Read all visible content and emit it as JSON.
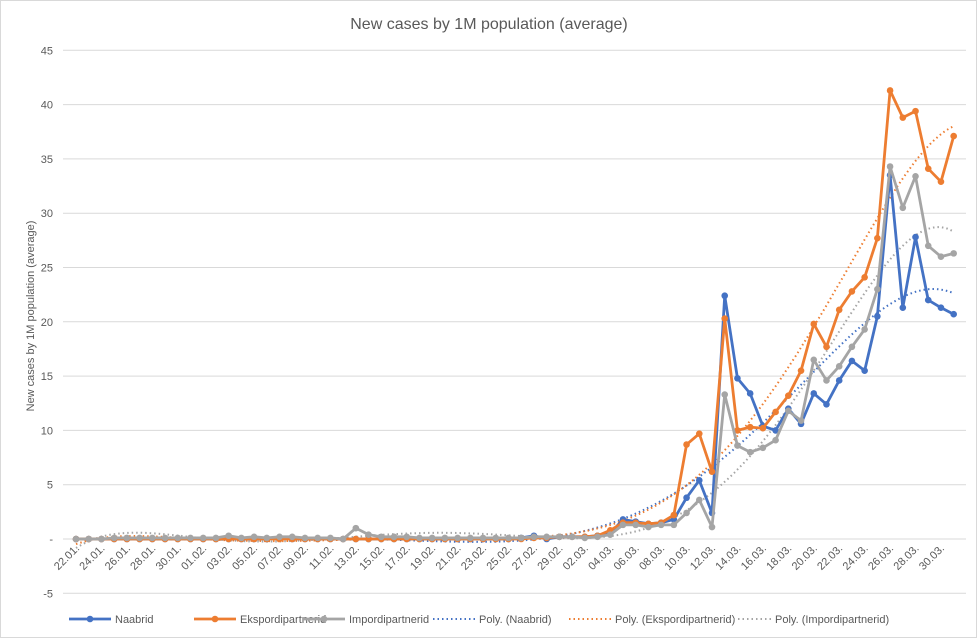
{
  "chart_data": {
    "type": "line",
    "title": "New cases by  1M population (average)",
    "xlabel": "",
    "ylabel": "New cases by 1M population (average)",
    "ylim": [
      -5,
      45
    ],
    "yticks": [
      -5,
      0,
      5,
      10,
      15,
      20,
      25,
      30,
      35,
      40,
      45
    ],
    "ytick_labels": [
      "-5",
      "-",
      "5",
      "10",
      "15",
      "20",
      "25",
      "30",
      "35",
      "40",
      "45"
    ],
    "grid": true,
    "legend_position": "bottom",
    "trend_order": 6,
    "x": [
      "22.01.",
      "23.01.",
      "24.01.",
      "25.01.",
      "26.01.",
      "27.01.",
      "28.01.",
      "29.01.",
      "30.01.",
      "31.01.",
      "01.02.",
      "02.02.",
      "03.02.",
      "04.02.",
      "05.02.",
      "06.02.",
      "07.02.",
      "08.02.",
      "09.02.",
      "10.02.",
      "11.02.",
      "12.02.",
      "13.02.",
      "14.02.",
      "15.02.",
      "16.02.",
      "17.02.",
      "18.02.",
      "19.02.",
      "20.02.",
      "21.02.",
      "22.02.",
      "23.02.",
      "24.02.",
      "25.02.",
      "26.02.",
      "27.02.",
      "28.02.",
      "29.02.",
      "01.03.",
      "02.03.",
      "03.03.",
      "04.03.",
      "05.03.",
      "06.03.",
      "07.03.",
      "08.03.",
      "09.03.",
      "10.03.",
      "11.03.",
      "12.03.",
      "13.03.",
      "14.03.",
      "15.03.",
      "16.03.",
      "17.03.",
      "18.03.",
      "19.03.",
      "20.03.",
      "21.03.",
      "22.03.",
      "23.03.",
      "24.03.",
      "25.03.",
      "26.03.",
      "27.03.",
      "28.03.",
      "29.03.",
      "30.03.",
      "31.03."
    ],
    "xtick_labels": [
      "22.01.",
      "24.01.",
      "26.01.",
      "28.01.",
      "30.01.",
      "01.02.",
      "03.02.",
      "05.02.",
      "07.02.",
      "09.02.",
      "11.02.",
      "13.02.",
      "15.02.",
      "17.02.",
      "19.02.",
      "21.02.",
      "23.02.",
      "25.02.",
      "27.02.",
      "29.02.",
      "02.03.",
      "04.03.",
      "06.03.",
      "08.03.",
      "10.03.",
      "12.03.",
      "14.03.",
      "16.03.",
      "18.03.",
      "20.03.",
      "22.03.",
      "24.03.",
      "26.03.",
      "28.03.",
      "30.03."
    ],
    "series": [
      {
        "name": "Naabrid",
        "color": "#4472c4",
        "values": [
          0,
          0,
          0,
          0,
          0,
          0,
          0,
          0,
          0,
          0,
          0,
          0,
          0,
          0,
          0,
          0,
          0.1,
          0,
          0,
          0,
          0,
          0,
          0,
          0,
          0,
          0,
          0,
          0,
          0,
          0,
          0,
          0,
          0,
          0,
          0,
          0.1,
          0.3,
          0,
          0.2,
          0.2,
          0.2,
          0.3,
          0.5,
          1.8,
          1.6,
          1.4,
          1.5,
          1.8,
          3.8,
          5.4,
          2.4,
          22.4,
          14.8,
          13.4,
          10.4,
          10.0,
          12.0,
          10.6,
          13.4,
          12.4,
          14.6,
          16.4,
          15.5,
          20.5,
          33.5,
          21.3,
          27.8,
          22.0,
          21.3,
          20.7
        ]
      },
      {
        "name": "Ekspordipartnerid",
        "color": "#ed7d31",
        "values": [
          0,
          0,
          0,
          0,
          0,
          0,
          0,
          0,
          0,
          0,
          0,
          0,
          0,
          0,
          0,
          0,
          0,
          0,
          0,
          0,
          0,
          0,
          0,
          0,
          0,
          0,
          0,
          0,
          0,
          0,
          0,
          0,
          0,
          0,
          0,
          0,
          0.1,
          0.1,
          0.2,
          0.2,
          0.2,
          0.3,
          0.8,
          1.5,
          1.5,
          1.4,
          1.5,
          2.2,
          8.7,
          9.7,
          6.2,
          20.3,
          10.0,
          10.3,
          10.2,
          11.7,
          13.2,
          15.5,
          19.8,
          17.7,
          21.1,
          22.8,
          24.1,
          27.7,
          41.3,
          38.8,
          39.4,
          34.1,
          32.9,
          37.1
        ]
      },
      {
        "name": "Impordipartnerid",
        "color": "#a5a5a5",
        "values": [
          0,
          0,
          0,
          0.1,
          0.1,
          0.1,
          0.1,
          0.1,
          0.1,
          0.1,
          0.1,
          0.1,
          0.3,
          0.1,
          0.2,
          0.1,
          0.2,
          0.2,
          0.1,
          0.1,
          0.1,
          0,
          1.0,
          0.4,
          0.2,
          0.2,
          0.2,
          0.1,
          0.1,
          0.1,
          0.1,
          0.1,
          0.1,
          0.1,
          0.1,
          0.1,
          0.2,
          0.2,
          0.2,
          0.2,
          0.1,
          0.2,
          0.4,
          1.3,
          1.3,
          1.1,
          1.3,
          1.3,
          2.4,
          3.6,
          1.1,
          13.3,
          8.6,
          8.0,
          8.4,
          9.1,
          11.8,
          10.9,
          16.5,
          14.6,
          15.9,
          17.7,
          19.3,
          23.0,
          34.3,
          30.5,
          33.4,
          27.0,
          26.0,
          26.3
        ]
      }
    ],
    "trendlines": [
      {
        "name": "Poly. (Naabrid)",
        "color": "#4472c4",
        "of": 0
      },
      {
        "name": "Poly. (Ekspordipartnerid)",
        "color": "#ed7d31",
        "of": 1
      },
      {
        "name": "Poly. (Impordipartnerid)",
        "color": "#a5a5a5",
        "of": 2
      }
    ]
  }
}
